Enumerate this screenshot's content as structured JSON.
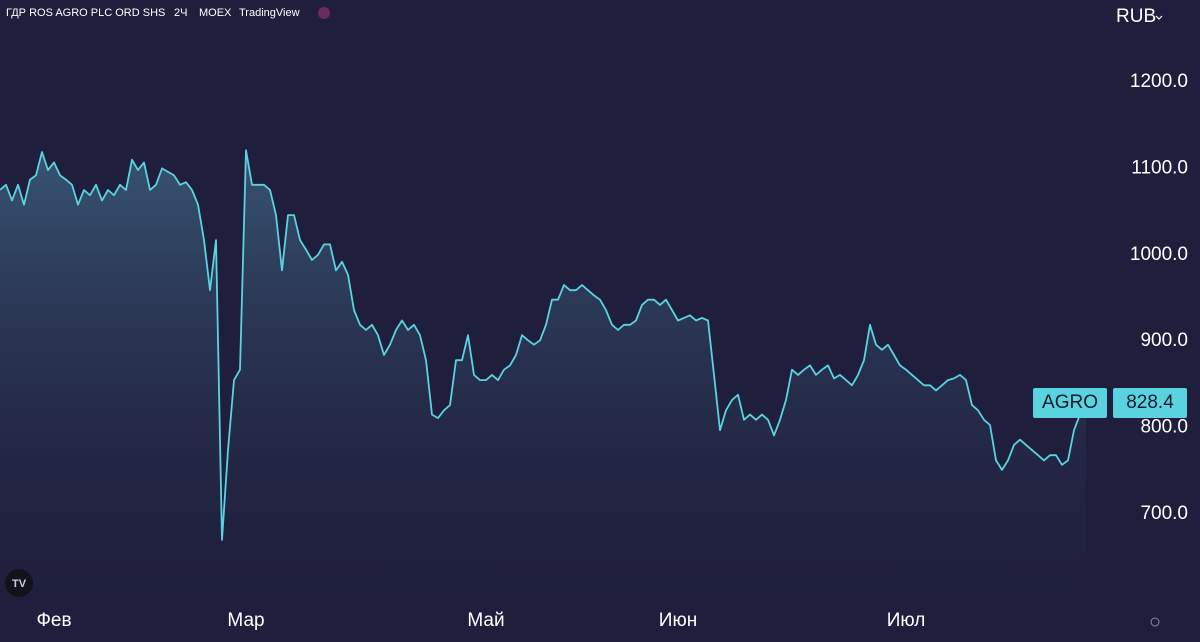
{
  "chart_data": {
    "type": "area",
    "title": "ГДР ROS AGRO PLC ORD SHS",
    "interval": "2Ч",
    "exchange": "MOEX",
    "source": "TradingView",
    "currency": "RUB",
    "ticker": "AGRO",
    "color": "#5ad3e0",
    "values": [
      1075,
      1081,
      1063,
      1081,
      1058,
      1087,
      1092,
      1119,
      1098,
      1107,
      1092,
      1087,
      1081,
      1058,
      1075,
      1069,
      1081,
      1063,
      1075,
      1069,
      1081,
      1075,
      1110,
      1098,
      1107,
      1075,
      1081,
      1100,
      1096,
      1092,
      1081,
      1084,
      1075,
      1058,
      1017,
      959,
      1017,
      670,
      774,
      855,
      867,
      1121,
      1081,
      1081,
      1081,
      1075,
      1046,
      982,
      1046,
      1046,
      1017,
      1006,
      994,
      1000,
      1012,
      1012,
      982,
      992,
      977,
      936,
      919,
      913,
      919,
      907,
      884,
      896,
      913,
      924,
      913,
      919,
      907,
      878,
      815,
      811,
      820,
      826,
      878,
      878,
      907,
      861,
      855,
      855,
      861,
      855,
      867,
      872,
      884,
      907,
      901,
      896,
      901,
      919,
      948,
      948,
      965,
      959,
      959,
      965,
      959,
      953,
      948,
      936,
      919,
      913,
      919,
      919,
      924,
      942,
      948,
      948,
      942,
      948,
      936,
      924,
      927,
      930,
      924,
      927,
      924,
      861,
      797,
      820,
      832,
      838,
      809,
      815,
      809,
      815,
      809,
      791,
      809,
      832,
      867,
      861,
      867,
      872,
      861,
      867,
      872,
      857,
      861,
      855,
      849,
      861,
      878,
      919,
      896,
      890,
      896,
      884,
      872,
      867,
      861,
      855,
      849,
      849,
      843,
      849,
      855,
      857,
      861,
      855,
      826,
      820,
      809,
      803,
      762,
      751,
      762,
      780,
      786,
      780,
      774,
      768,
      762,
      768,
      768,
      757,
      762,
      797,
      815,
      828.4
    ],
    "xlim": [
      0,
      181
    ],
    "xticks": [
      {
        "value": 9,
        "label": "Фев"
      },
      {
        "value": 41,
        "label": "Мар"
      },
      {
        "value": 81,
        "label": "Май"
      },
      {
        "value": 113,
        "label": "Июн"
      },
      {
        "value": 151,
        "label": "Июл"
      }
    ],
    "ylim": [
      650,
      1290
    ],
    "yticks": [
      {
        "value": 700,
        "label": "700.0"
      },
      {
        "value": 800,
        "label": "800.0"
      },
      {
        "value": 900,
        "label": "900.0"
      },
      {
        "value": 1000,
        "label": "1000.0"
      },
      {
        "value": 1100,
        "label": "1100.0"
      },
      {
        "value": 1200,
        "label": "1200.0"
      }
    ]
  }
}
